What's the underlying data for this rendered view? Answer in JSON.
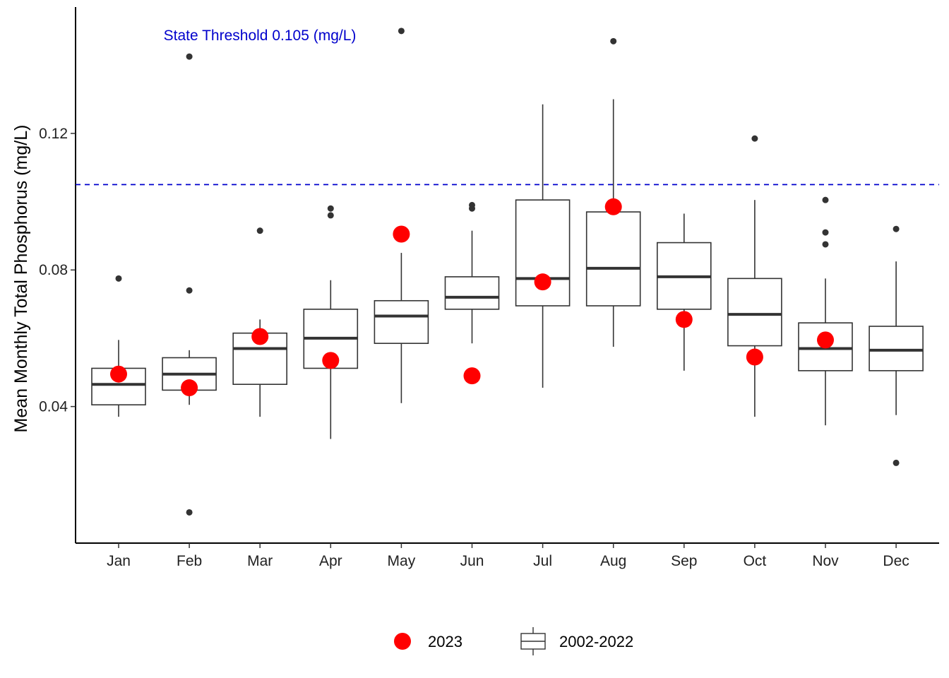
{
  "chart_data": {
    "type": "box",
    "ylabel": "Mean Monthly Total Phosphorus (mg/L)",
    "xlabel": "",
    "ylim": [
      0.0,
      0.157
    ],
    "yticks": [
      "0.04",
      "0.08",
      "0.12"
    ],
    "ytick_values": [
      0.04,
      0.08,
      0.12
    ],
    "categories": [
      "Jan",
      "Feb",
      "Mar",
      "Apr",
      "May",
      "Jun",
      "Jul",
      "Aug",
      "Sep",
      "Oct",
      "Nov",
      "Dec"
    ],
    "threshold": {
      "value": 0.105,
      "label": "State Threshold 0.105 (mg/L)",
      "color": "#0000CC"
    },
    "boxes": [
      {
        "q1": 0.0405,
        "median": 0.0465,
        "q3": 0.0512,
        "whisker_low": 0.037,
        "whisker_high": 0.0595,
        "outliers": [
          0.0775
        ]
      },
      {
        "q1": 0.0448,
        "median": 0.0495,
        "q3": 0.0543,
        "whisker_low": 0.0405,
        "whisker_high": 0.0565,
        "outliers": [
          0.1425,
          0.074,
          0.009
        ]
      },
      {
        "q1": 0.0465,
        "median": 0.057,
        "q3": 0.0615,
        "whisker_low": 0.037,
        "whisker_high": 0.0655,
        "outliers": [
          0.0915
        ]
      },
      {
        "q1": 0.0512,
        "median": 0.06,
        "q3": 0.0685,
        "whisker_low": 0.0305,
        "whisker_high": 0.077,
        "outliers": [
          0.098,
          0.096
        ]
      },
      {
        "q1": 0.0585,
        "median": 0.0665,
        "q3": 0.071,
        "whisker_low": 0.041,
        "whisker_high": 0.085,
        "outliers": [
          0.15
        ]
      },
      {
        "q1": 0.0685,
        "median": 0.072,
        "q3": 0.078,
        "whisker_low": 0.0585,
        "whisker_high": 0.0915,
        "outliers": [
          0.099,
          0.098
        ]
      },
      {
        "q1": 0.0695,
        "median": 0.0775,
        "q3": 0.1005,
        "whisker_low": 0.0455,
        "whisker_high": 0.1285,
        "outliers": []
      },
      {
        "q1": 0.0695,
        "median": 0.0805,
        "q3": 0.097,
        "whisker_low": 0.0575,
        "whisker_high": 0.13,
        "outliers": [
          0.147
        ]
      },
      {
        "q1": 0.0685,
        "median": 0.078,
        "q3": 0.088,
        "whisker_low": 0.0505,
        "whisker_high": 0.0965,
        "outliers": []
      },
      {
        "q1": 0.0578,
        "median": 0.067,
        "q3": 0.0775,
        "whisker_low": 0.037,
        "whisker_high": 0.1005,
        "outliers": [
          0.1185
        ]
      },
      {
        "q1": 0.0505,
        "median": 0.057,
        "q3": 0.0645,
        "whisker_low": 0.0345,
        "whisker_high": 0.0775,
        "outliers": [
          0.1005,
          0.091,
          0.0875
        ]
      },
      {
        "q1": 0.0505,
        "median": 0.0565,
        "q3": 0.0635,
        "whisker_low": 0.0375,
        "whisker_high": 0.0825,
        "outliers": [
          0.092,
          0.0235
        ]
      }
    ],
    "series": [
      {
        "name": "2023",
        "color": "#FF0000",
        "values": [
          0.0495,
          0.0455,
          0.0605,
          0.0535,
          0.0905,
          0.049,
          0.0765,
          0.0985,
          0.0655,
          0.0545,
          0.0595,
          null
        ]
      }
    ],
    "legend": {
      "placement": "bottom",
      "items": [
        {
          "label": "2023",
          "kind": "point",
          "color": "#FF0000"
        },
        {
          "label": "2002-2022",
          "kind": "box"
        }
      ]
    },
    "grid": false
  }
}
